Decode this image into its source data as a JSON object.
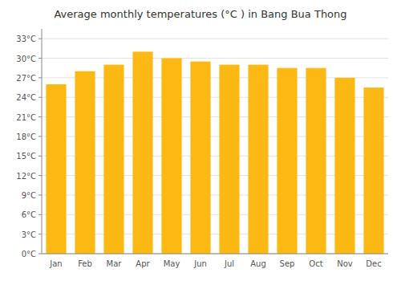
{
  "chart_data": {
    "type": "bar",
    "title": "Average monthly temperatures (°C ) in Bang Bua Thong",
    "categories": [
      "Jan",
      "Feb",
      "Mar",
      "Apr",
      "May",
      "Jun",
      "Jul",
      "Aug",
      "Sep",
      "Oct",
      "Nov",
      "Dec"
    ],
    "values": [
      26.0,
      28.0,
      29.0,
      31.0,
      30.0,
      29.5,
      29.0,
      29.0,
      28.5,
      28.5,
      27.0,
      25.5
    ],
    "color": "#FDB913",
    "ylim": [
      0,
      34.5
    ],
    "yticks": [
      {
        "value": 0,
        "label": "0°C"
      },
      {
        "value": 3,
        "label": "3°C"
      },
      {
        "value": 6,
        "label": "6°C"
      },
      {
        "value": 9,
        "label": "9°C"
      },
      {
        "value": 12,
        "label": "12°C"
      },
      {
        "value": 15,
        "label": "15°C"
      },
      {
        "value": 18,
        "label": "18°C"
      },
      {
        "value": 21,
        "label": "21°C"
      },
      {
        "value": 24,
        "label": "24°C"
      },
      {
        "value": 27,
        "label": "27°C"
      },
      {
        "value": 30,
        "label": "30°C"
      },
      {
        "value": 33,
        "label": "33°C"
      }
    ],
    "grid": true
  }
}
